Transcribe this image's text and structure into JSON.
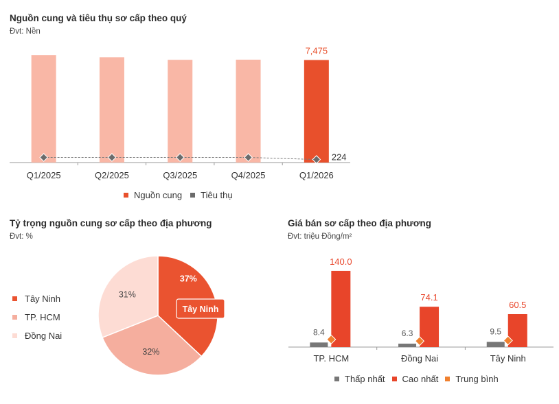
{
  "chart1": {
    "title": "Nguồn cung và tiêu thụ sơ cấp theo quý",
    "unit": "Đvt: Nền"
  },
  "chart2": {
    "title": "Tỷ trọng nguồn cung sơ cấp theo địa phương",
    "unit": "Đvt: %",
    "callout": "Tây Ninh"
  },
  "chart3": {
    "title": "Giá bán sơ cấp theo địa phương",
    "unit": "Đvt: triệu Đồng/m²"
  },
  "colors": {
    "supply_past": "#f9b7a6",
    "supply_current": "#e8502c",
    "consumption": "#6b6b6b",
    "min": "#777777",
    "max": "#e8452a",
    "avg": "#f0802e",
    "pie_tay_ninh": "#ea5330",
    "pie_hcm": "#f5ae9e",
    "pie_dong_nai": "#fddcd4"
  },
  "chart_data": [
    {
      "type": "bar",
      "title": "Nguồn cung và tiêu thụ sơ cấp theo quý",
      "ylabel": "Đvt: Nền",
      "categories": [
        "Q1/2025",
        "Q2/2025",
        "Q3/2025",
        "Q4/2025",
        "Q1/2026"
      ],
      "series": [
        {
          "name": "Nguồn cung",
          "values": [
            7840,
            7680,
            7490,
            7500,
            7475
          ],
          "labels": [
            "",
            "",
            "",
            "",
            "7,475"
          ]
        },
        {
          "name": "Tiêu thụ",
          "values": [
            224,
            224,
            224,
            224,
            224
          ],
          "labels": [
            "",
            "",
            "",
            "",
            "224"
          ]
        }
      ],
      "ylim": [
        0,
        8500
      ],
      "legend": "bottom"
    },
    {
      "type": "pie",
      "title": "Tỷ trọng nguồn cung sơ cấp theo địa phương",
      "categories": [
        "Tây Ninh",
        "TP. HCM",
        "Đồng Nai"
      ],
      "values": [
        37,
        32,
        31
      ],
      "labels": [
        "37%",
        "32%",
        "31%"
      ],
      "legend": "left"
    },
    {
      "type": "bar",
      "title": "Giá bán sơ cấp theo địa phương",
      "ylabel": "Đvt: triệu Đồng/m²",
      "categories": [
        "TP. HCM",
        "Đồng Nai",
        "Tây Ninh"
      ],
      "series": [
        {
          "name": "Thấp nhất",
          "values": [
            8.4,
            6.3,
            9.5
          ],
          "labels": [
            "8.4",
            "6.3",
            "9.5"
          ]
        },
        {
          "name": "Cao nhất",
          "values": [
            140.0,
            74.1,
            60.5
          ],
          "labels": [
            "140.0",
            "74.1",
            "60.5"
          ]
        },
        {
          "name": "Trung bình",
          "values": [
            14,
            11,
            12
          ]
        }
      ],
      "ylim": [
        0,
        150
      ],
      "legend": "bottom"
    }
  ]
}
